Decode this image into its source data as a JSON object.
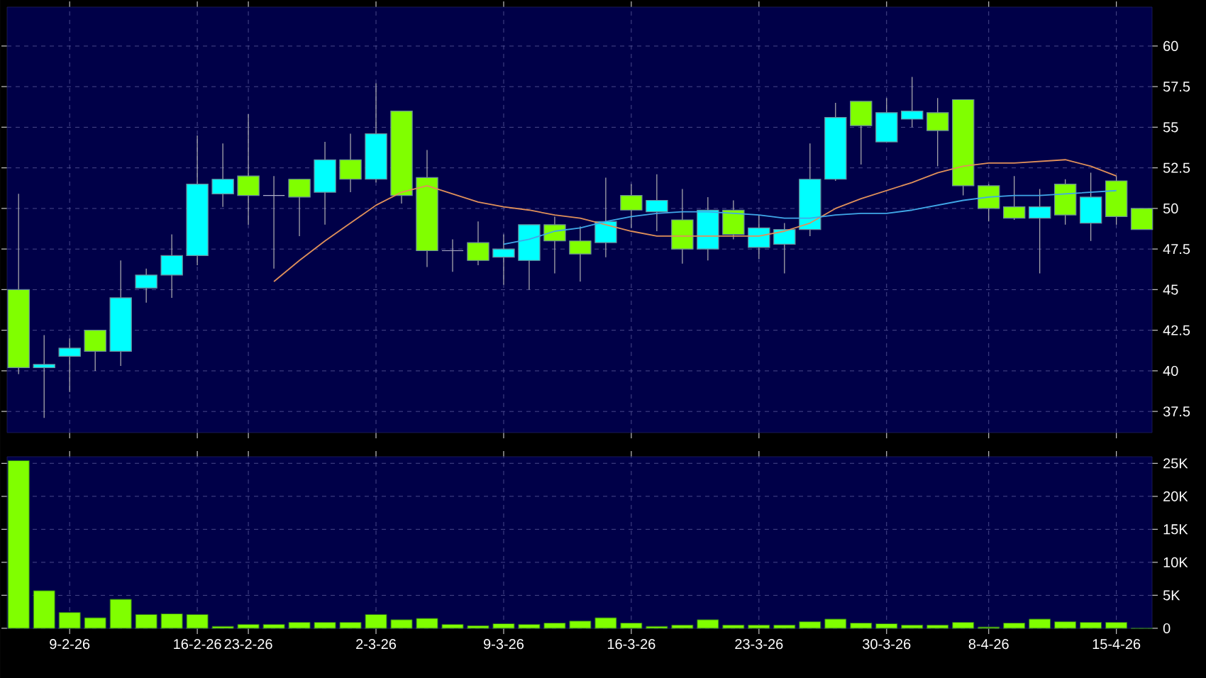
{
  "chart_data": [
    {
      "type": "candlestick",
      "categories": [
        null,
        null,
        null,
        null,
        null,
        null,
        null,
        null,
        null,
        null,
        null,
        null,
        null,
        null,
        null,
        null,
        null,
        null,
        null,
        null,
        null,
        null,
        null,
        null,
        null,
        null,
        null,
        null,
        null,
        null,
        null,
        null,
        null,
        null,
        null,
        null,
        null,
        null,
        null,
        null,
        null,
        null,
        null,
        null,
        null
      ],
      "ohlc": [
        [
          45,
          50.9,
          39.8,
          40.2
        ],
        [
          40.2,
          42.2,
          37.1,
          40.4
        ],
        [
          40.9,
          42.0,
          38.7,
          41.4
        ],
        [
          42.5,
          42.5,
          40.0,
          41.2
        ],
        [
          41.2,
          46.8,
          40.3,
          44.5
        ],
        [
          45.1,
          46.3,
          44.2,
          45.9
        ],
        [
          45.9,
          48.4,
          44.5,
          47.1
        ],
        [
          47.1,
          54.5,
          46.5,
          51.5
        ],
        [
          50.9,
          54.0,
          50.1,
          51.8
        ],
        [
          52.0,
          55.8,
          49.0,
          50.8
        ],
        [
          50.8,
          52.0,
          46.3,
          50.8
        ],
        [
          51.8,
          51.8,
          48.3,
          50.7
        ],
        [
          51.0,
          54.1,
          49.0,
          53.0
        ],
        [
          53.0,
          54.6,
          51.0,
          51.8
        ],
        [
          51.8,
          57.7,
          51.6,
          54.6
        ],
        [
          56.0,
          56.0,
          50.3,
          50.8
        ],
        [
          51.9,
          53.6,
          46.4,
          47.4
        ],
        [
          47.4,
          48.1,
          46.1,
          47.4
        ],
        [
          47.9,
          49.2,
          46.5,
          46.8
        ],
        [
          47.0,
          48.4,
          45.3,
          47.5
        ],
        [
          46.8,
          49.0,
          45.0,
          49.0
        ],
        [
          49.0,
          49.5,
          46.0,
          48.0
        ],
        [
          48.0,
          48.9,
          45.5,
          47.2
        ],
        [
          47.9,
          51.9,
          47.0,
          49.2
        ],
        [
          50.8,
          51.5,
          48.8,
          49.9
        ],
        [
          49.8,
          52.1,
          48.6,
          50.5
        ],
        [
          49.3,
          51.2,
          46.6,
          47.5
        ],
        [
          47.5,
          50.7,
          46.8,
          49.9
        ],
        [
          49.9,
          50.5,
          48.1,
          48.4
        ],
        [
          47.6,
          49.6,
          46.9,
          48.8
        ],
        [
          47.8,
          49.1,
          46.0,
          48.7
        ],
        [
          48.7,
          54.0,
          48.3,
          51.8
        ],
        [
          51.8,
          56.5,
          51.7,
          55.6
        ],
        [
          56.6,
          56.6,
          52.7,
          55.1
        ],
        [
          54.1,
          56.8,
          54.1,
          55.9
        ],
        [
          55.5,
          58.1,
          55.0,
          56.0
        ],
        [
          55.9,
          56.8,
          52.6,
          54.8
        ],
        [
          56.7,
          56.7,
          50.8,
          51.4
        ],
        [
          51.4,
          51.5,
          49.2,
          50.0
        ],
        [
          50.1,
          52.0,
          49.3,
          49.4
        ],
        [
          49.4,
          51.2,
          46.0,
          50.1
        ],
        [
          51.5,
          51.8,
          49.0,
          49.6
        ],
        [
          49.1,
          52.2,
          48.0,
          50.7
        ],
        [
          51.7,
          52.0,
          49.0,
          49.5
        ],
        [
          50.0,
          50.0,
          48.7,
          48.7
        ]
      ],
      "colors": [
        "#80ff00",
        "#00ffff",
        "#00ffff",
        "#80ff00",
        "#00ffff",
        "#00ffff",
        "#00ffff",
        "#00ffff",
        "#00ffff",
        "#80ff00",
        "#b0b0c8",
        "#80ff00",
        "#00ffff",
        "#80ff00",
        "#00ffff",
        "#80ff00",
        "#80ff00",
        "#b0b0c8",
        "#80ff00",
        "#00ffff",
        "#00ffff",
        "#80ff00",
        "#80ff00",
        "#00ffff",
        "#80ff00",
        "#00ffff",
        "#80ff00",
        "#00ffff",
        "#80ff00",
        "#00ffff",
        "#00ffff",
        "#00ffff",
        "#00ffff",
        "#80ff00",
        "#00ffff",
        "#00ffff",
        "#80ff00",
        "#80ff00",
        "#80ff00",
        "#80ff00",
        "#00ffff",
        "#80ff00",
        "#00ffff",
        "#80ff00",
        "#80ff00"
      ],
      "series": [
        {
          "type": "line",
          "color": "#e0905a",
          "values": [
            null,
            null,
            null,
            null,
            null,
            null,
            null,
            null,
            null,
            null,
            45.5,
            46.8,
            48.0,
            49.1,
            50.2,
            51.0,
            51.4,
            50.9,
            50.4,
            50.1,
            49.9,
            49.6,
            49.4,
            49.0,
            48.6,
            48.3,
            48.3,
            48.3,
            48.3,
            48.3,
            48.6,
            49.1,
            50.0,
            50.6,
            51.1,
            51.6,
            52.2,
            52.6,
            52.8,
            52.8,
            52.9,
            53.0,
            52.6,
            52.0,
            null
          ]
        },
        {
          "type": "line",
          "color": "#40a8e8",
          "values": [
            null,
            null,
            null,
            null,
            null,
            null,
            null,
            null,
            null,
            null,
            null,
            null,
            null,
            null,
            null,
            null,
            null,
            null,
            null,
            47.8,
            48.1,
            48.6,
            48.8,
            49.2,
            49.5,
            49.7,
            49.8,
            49.8,
            49.7,
            49.6,
            49.4,
            49.4,
            49.6,
            49.7,
            49.7,
            49.9,
            50.2,
            50.5,
            50.7,
            50.8,
            50.8,
            50.9,
            51.0,
            51.1,
            null
          ]
        }
      ],
      "ylim": [
        36.2,
        62.4
      ],
      "yticks": [
        37.5,
        40,
        42.5,
        45,
        47.5,
        50,
        52.5,
        55,
        57.5,
        60
      ],
      "grid": true,
      "tick_labels": "y"
    },
    {
      "type": "bar",
      "color": "#80ff00",
      "categories": [
        null,
        null,
        "9-2-26",
        null,
        null,
        null,
        null,
        "16-2-26",
        null,
        "23-2-26",
        null,
        null,
        null,
        null,
        "2-3-26",
        null,
        null,
        null,
        null,
        "9-3-26",
        null,
        null,
        null,
        null,
        "16-3-26",
        null,
        null,
        null,
        null,
        "23-3-26",
        null,
        null,
        null,
        null,
        "30-3-26",
        null,
        null,
        null,
        "8-4-26",
        null,
        null,
        null,
        null,
        "15-4-26",
        null
      ],
      "values": [
        25400,
        5700,
        2400,
        1600,
        4400,
        2100,
        2200,
        2100,
        300,
        600,
        600,
        900,
        900,
        900,
        2100,
        1300,
        1500,
        600,
        400,
        700,
        600,
        800,
        1100,
        1600,
        800,
        300,
        500,
        1300,
        500,
        500,
        500,
        1000,
        1400,
        800,
        700,
        500,
        500,
        900,
        200,
        800,
        1400,
        1000,
        900,
        900,
        0
      ],
      "ylim": [
        0,
        26000
      ],
      "yticks": [
        0,
        {
          "value": 5000,
          "label": "5K"
        },
        {
          "value": 10000,
          "label": "10K"
        },
        {
          "value": 15000,
          "label": "15K"
        },
        {
          "value": 20000,
          "label": "20K"
        },
        {
          "value": 25000,
          "label": "25K"
        }
      ],
      "grid": true
    }
  ]
}
